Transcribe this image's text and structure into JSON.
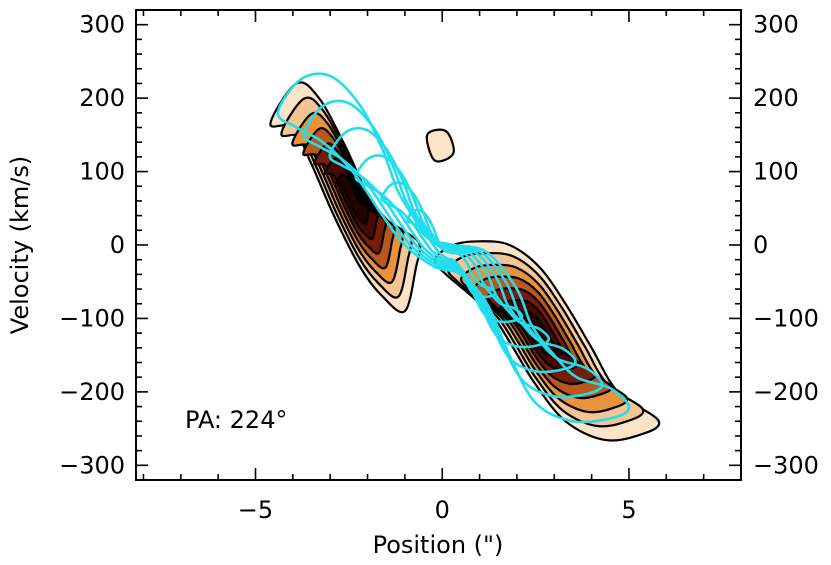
{
  "chart_data": {
    "type": "contour",
    "xlabel": "Position (\")",
    "ylabel": "Velocity (km/s)",
    "xlim": [
      -8.2,
      8
    ],
    "ylim": [
      -320,
      320
    ],
    "xticks": [
      -5,
      0,
      5
    ],
    "xtick_labels": [
      "−5",
      "0",
      "5"
    ],
    "yticks": [
      300,
      200,
      100,
      0,
      -100,
      -200,
      -300
    ],
    "ytick_labels": [
      "300",
      "200",
      "100",
      "0",
      "−100",
      "−200",
      "−300"
    ],
    "right_ytick_labels": [
      "300",
      "200",
      "100",
      "0",
      "−100",
      "−200",
      "−300"
    ],
    "annotation": "PA: 224°",
    "grid": false,
    "colors": {
      "filled_levels": [
        "#fbe3c8",
        "#f5c493",
        "#e9923c",
        "#b9571c",
        "#7a1a08",
        "#4a0804",
        "#240200"
      ],
      "contour_line": "#000000",
      "overlay": "#22ddee"
    },
    "filled_components": [
      {
        "x": [
          -4.6,
          -3.9,
          -3.3,
          -2.6,
          -2.0,
          -1.4,
          -0.9,
          -0.6,
          -0.7,
          -1.0,
          -1.6,
          -2.2,
          -2.9,
          -3.5,
          -4.0
        ],
        "y": [
          165,
          220,
          200,
          135,
          70,
          30,
          15,
          0,
          -30,
          -90,
          -70,
          -30,
          40,
          110,
          160
        ]
      },
      {
        "x": [
          -0.2,
          0.3,
          1.0,
          1.8,
          2.6,
          3.3,
          4.0,
          4.7,
          5.8,
          5.2,
          4.3,
          3.3,
          2.5,
          1.9,
          1.4,
          0.8,
          0.1
        ],
        "y": [
          -20,
          0,
          5,
          0,
          -30,
          -80,
          -140,
          -200,
          -240,
          -260,
          -265,
          -240,
          -190,
          -140,
          -100,
          -70,
          -40
        ]
      },
      {
        "x": [
          -0.4,
          0.1,
          0.3,
          -0.2
        ],
        "y": [
          150,
          155,
          125,
          115
        ]
      }
    ],
    "overlay_components": [
      {
        "x": [
          -4.4,
          -3.8,
          -3.0,
          -2.2,
          -1.6,
          -1.2,
          -0.8,
          -0.4,
          0.3,
          1.2,
          2.0,
          2.4,
          3.0,
          3.6,
          4.5,
          5.0,
          4.6,
          3.5,
          2.5,
          1.8,
          1.2,
          0.5,
          -0.2,
          -1.0,
          -1.6,
          -2.4,
          -3.2,
          -3.9
        ],
        "y": [
          180,
          225,
          230,
          190,
          130,
          75,
          40,
          10,
          0,
          -10,
          -60,
          -110,
          -150,
          -180,
          -195,
          -220,
          -235,
          -240,
          -215,
          -150,
          -80,
          -40,
          -30,
          0,
          40,
          100,
          140,
          160
        ]
      }
    ]
  }
}
